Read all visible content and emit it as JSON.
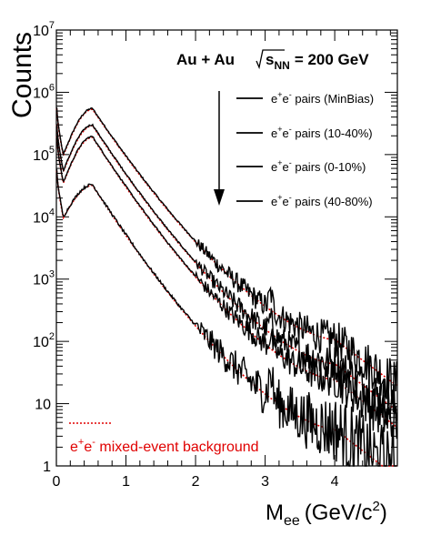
{
  "chart_data": {
    "type": "line",
    "title": "Au + Au",
    "energy_label": "s",
    "energy_sub": "NN",
    "energy_value": "= 200 GeV",
    "xlabel": "M",
    "xlabel_sub": "ee",
    "xlabel_unit": "(GeV/c",
    "xlabel_unit_sup": "2",
    "xlabel_unit_close": ")",
    "ylabel": "Counts",
    "xlim": [
      0,
      4.9
    ],
    "ylim": [
      1,
      10000000
    ],
    "yscale": "log",
    "x_ticks": [
      "0",
      "1",
      "2",
      "3",
      "4"
    ],
    "y_ticks": [
      {
        "base": "1",
        "exp": ""
      },
      {
        "base": "10",
        "exp": ""
      },
      {
        "base": "10",
        "exp": "2"
      },
      {
        "base": "10",
        "exp": "3"
      },
      {
        "base": "10",
        "exp": "4"
      },
      {
        "base": "10",
        "exp": "5"
      },
      {
        "base": "10",
        "exp": "6"
      },
      {
        "base": "10",
        "exp": "7"
      }
    ],
    "series_color": "#000000",
    "background_color": "#e00000",
    "series": [
      {
        "label_pre": "e",
        "label_mid": "e",
        "label_post": " pairs (MinBias)",
        "peak": 550000,
        "low_dip": 100000,
        "tail_at_4": 110
      },
      {
        "label_pre": "e",
        "label_mid": "e",
        "label_post": " pairs (10-40%)",
        "peak": 300000,
        "low_dip": 55000,
        "tail_at_4": 45
      },
      {
        "label_pre": "e",
        "label_mid": "e",
        "label_post": " pairs (0-10%)",
        "peak": 195000,
        "low_dip": 36000,
        "tail_at_4": 25
      },
      {
        "label_pre": "e",
        "label_mid": "e",
        "label_post": " pairs (40-80%)",
        "peak": 33000,
        "low_dip": 10000,
        "tail_at_4": 4
      }
    ],
    "background": {
      "label_pre": "e",
      "label_mid": "e",
      "label_post": " mixed-event background"
    }
  }
}
